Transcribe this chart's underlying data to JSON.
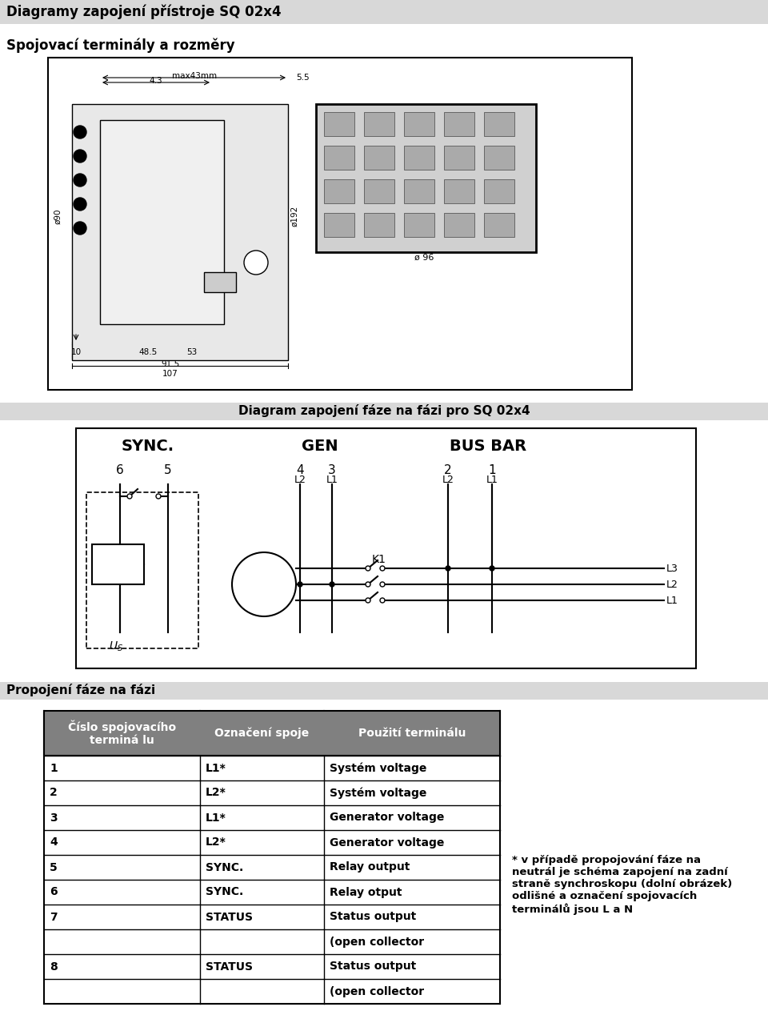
{
  "title": "Diagramy zapojení přístroje SQ 02x4",
  "subtitle": "Spojovací terminály a rozměry",
  "section2_title": "Diagram zapojení fáze na fázi pro SQ 02x4",
  "section3_title": "Propojení fáze na fázi",
  "table_data": [
    [
      "1",
      "L1*",
      "Systém voltage"
    ],
    [
      "2",
      "L2*",
      "Systém voltage"
    ],
    [
      "3",
      "L1*",
      "Generator voltage"
    ],
    [
      "4",
      "L2*",
      "Generator voltage"
    ],
    [
      "5",
      "SYNC.",
      "Relay output"
    ],
    [
      "6",
      "SYNC.",
      "Relay otput"
    ],
    [
      "7",
      "STATUS",
      "Status output"
    ],
    [
      "",
      "",
      "(open collector"
    ],
    [
      "8",
      "STATUS",
      "Status output"
    ],
    [
      "",
      "",
      "(open collector"
    ]
  ],
  "footnote": "* v případě propojování fáze na\nneutrál je schéma zapojení na zadní\nstraně synchroskopu (dolní obrázek)\nodlišné a označení spojovacích\nterminálů jsou L a N",
  "page_bg": "#ffffff"
}
